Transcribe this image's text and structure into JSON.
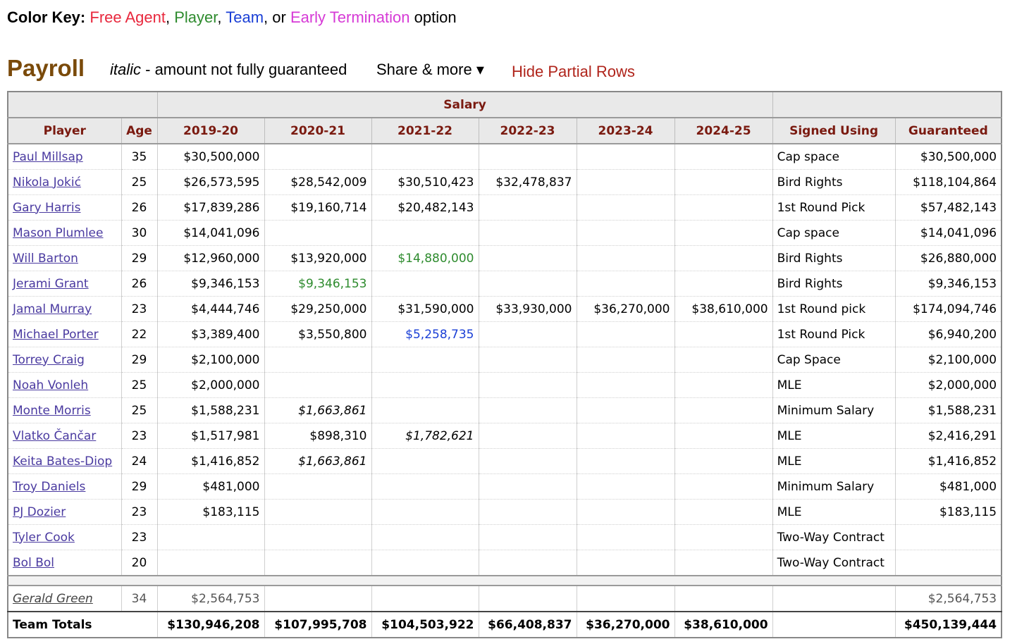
{
  "color_key": {
    "label": "Color Key:",
    "free_agent": "Free Agent",
    "sep1": ", ",
    "player": "Player",
    "sep2": ", ",
    "team": "Team",
    "sep3": ", or ",
    "early_termination": "Early Termination",
    "option": " option"
  },
  "section": {
    "title": "Payroll",
    "italic_word": "italic",
    "italic_desc": " - amount not fully guaranteed",
    "share_more": "Share & more ▾",
    "hide_partial": "Hide Partial Rows"
  },
  "table": {
    "over_header": "Salary",
    "columns": [
      "Player",
      "Age",
      "2019-20",
      "2020-21",
      "2021-22",
      "2022-23",
      "2023-24",
      "2024-25",
      "Signed Using",
      "Guaranteed"
    ],
    "rows": [
      {
        "player": "Paul Millsap",
        "age": "35",
        "s": [
          "$30,500,000",
          "",
          "",
          "",
          "",
          ""
        ],
        "signed": "Cap space",
        "guaranteed": "$30,500,000"
      },
      {
        "player": "Nikola Jokić",
        "age": "25",
        "s": [
          "$26,573,595",
          "$28,542,009",
          "$30,510,423",
          "$32,478,837",
          "",
          ""
        ],
        "signed": "Bird Rights",
        "guaranteed": "$118,104,864"
      },
      {
        "player": "Gary Harris",
        "age": "26",
        "s": [
          "$17,839,286",
          "$19,160,714",
          "$20,482,143",
          "",
          "",
          ""
        ],
        "signed": "1st Round Pick",
        "guaranteed": "$57,482,143"
      },
      {
        "player": "Mason Plumlee",
        "age": "30",
        "s": [
          "$14,041,096",
          "",
          "",
          "",
          "",
          ""
        ],
        "signed": "Cap space",
        "guaranteed": "$14,041,096"
      },
      {
        "player": "Will Barton",
        "age": "29",
        "s": [
          "$12,960,000",
          "$13,920,000",
          "$14,880,000",
          "",
          "",
          ""
        ],
        "signed": "Bird Rights",
        "guaranteed": "$26,880,000"
      },
      {
        "player": "Jerami Grant",
        "age": "26",
        "s": [
          "$9,346,153",
          "$9,346,153",
          "",
          "",
          "",
          ""
        ],
        "signed": "Bird Rights",
        "guaranteed": "$9,346,153"
      },
      {
        "player": "Jamal Murray",
        "age": "23",
        "s": [
          "$4,444,746",
          "$29,250,000",
          "$31,590,000",
          "$33,930,000",
          "$36,270,000",
          "$38,610,000"
        ],
        "signed": "1st Round pick",
        "guaranteed": "$174,094,746"
      },
      {
        "player": "Michael Porter",
        "age": "22",
        "s": [
          "$3,389,400",
          "$3,550,800",
          "$5,258,735",
          "",
          "",
          ""
        ],
        "signed": "1st Round Pick",
        "guaranteed": "$6,940,200"
      },
      {
        "player": "Torrey Craig",
        "age": "29",
        "s": [
          "$2,100,000",
          "",
          "",
          "",
          "",
          ""
        ],
        "signed": "Cap Space",
        "guaranteed": "$2,100,000"
      },
      {
        "player": "Noah Vonleh",
        "age": "25",
        "s": [
          "$2,000,000",
          "",
          "",
          "",
          "",
          ""
        ],
        "signed": "MLE",
        "guaranteed": "$2,000,000"
      },
      {
        "player": "Monte Morris",
        "age": "25",
        "s": [
          "$1,588,231",
          "$1,663,861",
          "",
          "",
          "",
          ""
        ],
        "signed": "Minimum Salary",
        "guaranteed": "$1,588,231"
      },
      {
        "player": "Vlatko Čančar",
        "age": "23",
        "s": [
          "$1,517,981",
          "$898,310",
          "$1,782,621",
          "",
          "",
          ""
        ],
        "signed": "MLE",
        "guaranteed": "$2,416,291"
      },
      {
        "player": "Keita Bates-Diop",
        "age": "24",
        "s": [
          "$1,416,852",
          "$1,663,861",
          "",
          "",
          "",
          ""
        ],
        "signed": "MLE",
        "guaranteed": "$1,416,852"
      },
      {
        "player": "Troy Daniels",
        "age": "29",
        "s": [
          "$481,000",
          "",
          "",
          "",
          "",
          ""
        ],
        "signed": "Minimum Salary",
        "guaranteed": "$481,000"
      },
      {
        "player": "PJ Dozier",
        "age": "23",
        "s": [
          "$183,115",
          "",
          "",
          "",
          "",
          ""
        ],
        "signed": "MLE",
        "guaranteed": "$183,115"
      },
      {
        "player": "Tyler Cook",
        "age": "23",
        "s": [
          "",
          "",
          "",
          "",
          "",
          ""
        ],
        "signed": "Two-Way Contract",
        "guaranteed": ""
      },
      {
        "player": "Bol Bol",
        "age": "20",
        "s": [
          "",
          "",
          "",
          "",
          "",
          ""
        ],
        "signed": "Two-Way Contract",
        "guaranteed": ""
      }
    ],
    "cell_styles": {
      "4-2": "green",
      "5-1": "green",
      "7-2": "blue",
      "10-1": "ital",
      "11-2": "ital",
      "12-1": "ital"
    },
    "partial_row": {
      "player": "Gerald Green",
      "age": "34",
      "s": [
        "$2,564,753",
        "",
        "",
        "",
        "",
        ""
      ],
      "signed": "",
      "guaranteed": "$2,564,753"
    },
    "totals": {
      "label": "Team Totals",
      "s": [
        "$130,946,208",
        "$107,995,708",
        "$104,503,922",
        "$66,408,837",
        "$36,270,000",
        "$38,610,000"
      ],
      "guaranteed": "$450,139,444"
    }
  }
}
